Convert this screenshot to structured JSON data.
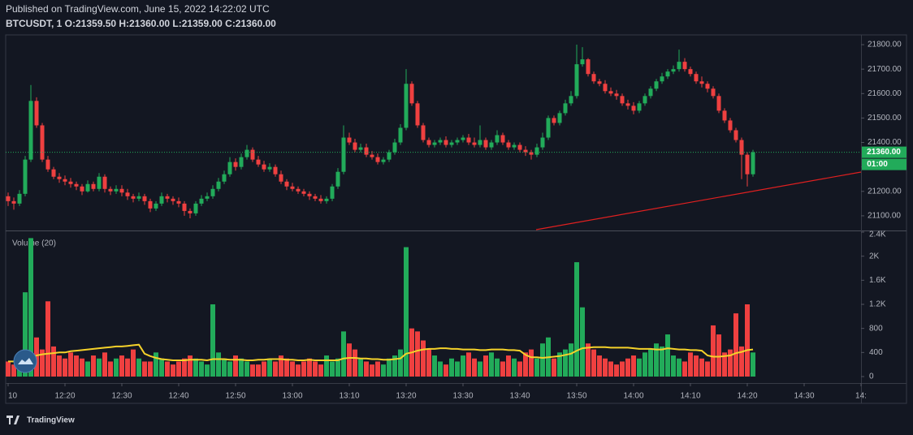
{
  "header": {
    "published": "Published on TradingView.com, June 15, 2022 14:22:02 UTC",
    "symbol_line": "BTCUSDT, 1 O:21359.50 H:21360.00 L:21359.00 C:21360.00"
  },
  "branding": "TradingView",
  "chart_data": {
    "type": "candlestick",
    "x": [
      "12:10",
      "12:11",
      "12:12",
      "12:13",
      "12:14",
      "12:15",
      "12:16",
      "12:17",
      "12:18",
      "12:19",
      "12:20",
      "12:21",
      "12:22",
      "12:23",
      "12:24",
      "12:25",
      "12:26",
      "12:27",
      "12:28",
      "12:29",
      "12:30",
      "12:31",
      "12:32",
      "12:33",
      "12:34",
      "12:35",
      "12:36",
      "12:37",
      "12:38",
      "12:39",
      "12:40",
      "12:41",
      "12:42",
      "12:43",
      "12:44",
      "12:45",
      "12:46",
      "12:47",
      "12:48",
      "12:49",
      "12:50",
      "12:51",
      "12:52",
      "12:53",
      "12:54",
      "12:55",
      "12:56",
      "12:57",
      "12:58",
      "12:59",
      "13:00",
      "13:01",
      "13:02",
      "13:03",
      "13:04",
      "13:05",
      "13:06",
      "13:07",
      "13:08",
      "13:09",
      "13:10",
      "13:11",
      "13:12",
      "13:13",
      "13:14",
      "13:15",
      "13:16",
      "13:17",
      "13:18",
      "13:19",
      "13:20",
      "13:21",
      "13:22",
      "13:23",
      "13:24",
      "13:25",
      "13:26",
      "13:27",
      "13:28",
      "13:29",
      "13:30",
      "13:31",
      "13:32",
      "13:33",
      "13:34",
      "13:35",
      "13:36",
      "13:37",
      "13:38",
      "13:39",
      "13:40",
      "13:41",
      "13:42",
      "13:43",
      "13:44",
      "13:45",
      "13:46",
      "13:47",
      "13:48",
      "13:49",
      "13:50",
      "13:51",
      "13:52",
      "13:53",
      "13:54",
      "13:55",
      "13:56",
      "13:57",
      "13:58",
      "13:59",
      "14:00",
      "14:01",
      "14:02",
      "14:03",
      "14:04",
      "14:05",
      "14:06",
      "14:07",
      "14:08",
      "14:09",
      "14:10",
      "14:11",
      "14:12",
      "14:13",
      "14:14",
      "14:15",
      "14:16",
      "14:17",
      "14:18",
      "14:19",
      "14:20",
      "14:21"
    ],
    "open": [
      21180,
      21160,
      21150,
      21190,
      21330,
      21570,
      21470,
      21330,
      21290,
      21260,
      21250,
      21240,
      21230,
      21220,
      21200,
      21230,
      21210,
      21260,
      21210,
      21200,
      21210,
      21195,
      21180,
      21170,
      21180,
      21160,
      21130,
      21150,
      21180,
      21170,
      21160,
      21150,
      21120,
      21110,
      21150,
      21170,
      21180,
      21210,
      21240,
      21270,
      21320,
      21300,
      21340,
      21370,
      21330,
      21310,
      21290,
      21300,
      21270,
      21240,
      21220,
      21210,
      21200,
      21190,
      21180,
      21170,
      21160,
      21170,
      21220,
      21280,
      21420,
      21400,
      21370,
      21380,
      21350,
      21340,
      21320,
      21330,
      21360,
      21400,
      21460,
      21640,
      21560,
      21470,
      21410,
      21390,
      21400,
      21410,
      21390,
      21400,
      21410,
      21420,
      21400,
      21390,
      21410,
      21380,
      21400,
      21430,
      21400,
      21380,
      21390,
      21370,
      21360,
      21350,
      21380,
      21420,
      21500,
      21480,
      21520,
      21560,
      21590,
      21720,
      21740,
      21680,
      21650,
      21640,
      21610,
      21600,
      21590,
      21560,
      21550,
      21530,
      21560,
      21590,
      21620,
      21650,
      21670,
      21690,
      21700,
      21730,
      21700,
      21680,
      21650,
      21640,
      21620,
      21590,
      21530,
      21490,
      21450,
      21410,
      21350,
      21270
    ],
    "high": [
      21195,
      21175,
      21205,
      21345,
      21635,
      21585,
      21480,
      21345,
      21300,
      21275,
      21265,
      21255,
      21240,
      21230,
      21245,
      21240,
      21275,
      21270,
      21220,
      21225,
      21225,
      21210,
      21190,
      21195,
      21190,
      21170,
      21160,
      21195,
      21190,
      21180,
      21175,
      21160,
      21130,
      21160,
      21185,
      21195,
      21225,
      21255,
      21285,
      21340,
      21335,
      21355,
      21390,
      21380,
      21345,
      21325,
      21315,
      21310,
      21285,
      21250,
      21235,
      21220,
      21210,
      21200,
      21190,
      21185,
      21180,
      21230,
      21295,
      21470,
      21440,
      21415,
      21395,
      21395,
      21365,
      21355,
      21340,
      21370,
      21415,
      21475,
      21700,
      21650,
      21570,
      21480,
      21420,
      21410,
      21420,
      21425,
      21410,
      21420,
      21430,
      21435,
      21420,
      21470,
      21420,
      21410,
      21450,
      21440,
      21410,
      21400,
      21400,
      21385,
      21370,
      21395,
      21440,
      21510,
      21510,
      21530,
      21575,
      21610,
      21800,
      21790,
      21745,
      21690,
      21660,
      21655,
      21625,
      21615,
      21600,
      21575,
      21565,
      21570,
      21600,
      21630,
      21660,
      21685,
      21700,
      21715,
      21780,
      21745,
      21710,
      21690,
      21670,
      21650,
      21630,
      21600,
      21540,
      21500,
      21460,
      21420,
      21360,
      21370
    ],
    "low": [
      21140,
      21125,
      21140,
      21180,
      21320,
      21460,
      21320,
      21280,
      21250,
      21235,
      21225,
      21215,
      21205,
      21185,
      21195,
      21200,
      21200,
      21195,
      21185,
      21190,
      21180,
      21165,
      21155,
      21160,
      21145,
      21115,
      21120,
      21140,
      21155,
      21145,
      21135,
      21100,
      21090,
      21100,
      21140,
      21160,
      21170,
      21200,
      21230,
      21260,
      21285,
      21290,
      21330,
      21320,
      21300,
      21280,
      21280,
      21260,
      21230,
      21205,
      21200,
      21190,
      21180,
      21165,
      21160,
      21150,
      21150,
      21160,
      21210,
      21270,
      21390,
      21360,
      21360,
      21340,
      21330,
      21310,
      21310,
      21320,
      21350,
      21390,
      21450,
      21550,
      21460,
      21400,
      21380,
      21380,
      21390,
      21380,
      21380,
      21390,
      21400,
      21390,
      21380,
      21380,
      21370,
      21370,
      21390,
      21390,
      21370,
      21370,
      21360,
      21345,
      21330,
      21340,
      21370,
      21410,
      21470,
      21470,
      21510,
      21550,
      21580,
      21710,
      21670,
      21640,
      21630,
      21600,
      21590,
      21575,
      21550,
      21535,
      21515,
      21520,
      21550,
      21580,
      21610,
      21640,
      21660,
      21680,
      21690,
      21690,
      21670,
      21640,
      21625,
      21605,
      21580,
      21520,
      21480,
      21440,
      21400,
      21250,
      21220,
      21260
    ],
    "close": [
      21160,
      21150,
      21190,
      21330,
      21570,
      21470,
      21330,
      21290,
      21260,
      21250,
      21240,
      21230,
      21220,
      21200,
      21230,
      21210,
      21260,
      21210,
      21200,
      21210,
      21195,
      21180,
      21170,
      21180,
      21160,
      21130,
      21150,
      21180,
      21170,
      21160,
      21150,
      21120,
      21110,
      21150,
      21170,
      21180,
      21210,
      21240,
      21270,
      21320,
      21300,
      21340,
      21370,
      21330,
      21310,
      21290,
      21300,
      21270,
      21240,
      21220,
      21210,
      21200,
      21190,
      21180,
      21170,
      21160,
      21170,
      21220,
      21280,
      21420,
      21400,
      21370,
      21380,
      21350,
      21340,
      21320,
      21330,
      21360,
      21400,
      21460,
      21640,
      21560,
      21470,
      21410,
      21390,
      21400,
      21410,
      21390,
      21400,
      21410,
      21420,
      21400,
      21390,
      21410,
      21380,
      21400,
      21430,
      21400,
      21380,
      21390,
      21370,
      21360,
      21350,
      21380,
      21420,
      21500,
      21480,
      21520,
      21560,
      21590,
      21720,
      21740,
      21680,
      21650,
      21640,
      21610,
      21600,
      21590,
      21560,
      21550,
      21530,
      21560,
      21590,
      21620,
      21650,
      21670,
      21690,
      21700,
      21730,
      21700,
      21680,
      21650,
      21640,
      21620,
      21590,
      21530,
      21490,
      21450,
      21410,
      21350,
      21270,
      21360
    ],
    "up_color": "#22ab5a",
    "down_color": "#ef4040",
    "xlim": [
      "12:09",
      "14:40"
    ],
    "xticks": [
      {
        "value": "12:10",
        "label": "10"
      },
      "12:20",
      "12:30",
      "12:40",
      "12:50",
      "13:00",
      "13:10",
      "13:20",
      "13:30",
      "13:40",
      "13:50",
      "14:00",
      "14:10",
      "14:20",
      "14:30",
      {
        "value": "14:40",
        "label": "14:"
      }
    ],
    "ylim": [
      21040,
      21840
    ],
    "yticks": [
      {
        "value": 21100,
        "label": "21100.00"
      },
      {
        "value": 21200,
        "label": "21200.00"
      },
      {
        "value": 21300,
        "label": "21300.00"
      },
      {
        "value": 21400,
        "label": "21400.00"
      },
      {
        "value": 21500,
        "label": "21500.00"
      },
      {
        "value": 21600,
        "label": "21600.00"
      },
      {
        "value": 21700,
        "label": "21700.00"
      },
      {
        "value": 21800,
        "label": "21800.00"
      }
    ],
    "last_price_label": "21360.00",
    "countdown": "01:00",
    "volume": {
      "title": "Volume (20)",
      "values": [
        250,
        200,
        300,
        1400,
        2300,
        650,
        450,
        1250,
        500,
        350,
        300,
        400,
        350,
        300,
        250,
        350,
        300,
        400,
        250,
        300,
        350,
        300,
        450,
        300,
        250,
        250,
        400,
        300,
        250,
        200,
        250,
        300,
        350,
        300,
        250,
        200,
        1200,
        400,
        300,
        250,
        350,
        300,
        250,
        200,
        200,
        250,
        300,
        250,
        350,
        300,
        250,
        200,
        250,
        300,
        250,
        200,
        350,
        250,
        300,
        750,
        550,
        450,
        300,
        250,
        200,
        250,
        200,
        300,
        350,
        450,
        2150,
        800,
        750,
        600,
        450,
        350,
        250,
        200,
        300,
        250,
        350,
        400,
        300,
        250,
        350,
        400,
        300,
        250,
        350,
        300,
        250,
        400,
        450,
        300,
        550,
        650,
        300,
        400,
        450,
        550,
        1900,
        1150,
        550,
        450,
        350,
        300,
        250,
        200,
        250,
        300,
        350,
        300,
        400,
        450,
        550,
        500,
        700,
        350,
        300,
        250,
        400,
        350,
        300,
        250,
        850,
        700,
        400,
        450,
        1050,
        500,
        1200,
        400
      ],
      "ma": {
        "color": "#f5d22a",
        "values": [
          250,
          250,
          260,
          300,
          320,
          350,
          370,
          380,
          390,
          400,
          400,
          420,
          430,
          440,
          450,
          460,
          470,
          480,
          490,
          500,
          500,
          510,
          520,
          530,
          380,
          340,
          310,
          290,
          280,
          270,
          270,
          270,
          280,
          280,
          280,
          270,
          290,
          290,
          290,
          280,
          280,
          280,
          270,
          270,
          280,
          280,
          290,
          290,
          290,
          280,
          280,
          270,
          270,
          280,
          270,
          270,
          270,
          270,
          270,
          300,
          310,
          310,
          300,
          300,
          290,
          290,
          280,
          280,
          290,
          300,
          380,
          400,
          430,
          450,
          460,
          460,
          470,
          470,
          460,
          460,
          450,
          450,
          450,
          440,
          440,
          450,
          450,
          450,
          440,
          440,
          430,
          360,
          320,
          320,
          310,
          320,
          330,
          340,
          360,
          380,
          430,
          470,
          480,
          490,
          490,
          490,
          480,
          480,
          480,
          480,
          470,
          460,
          460,
          460,
          450,
          450,
          470,
          460,
          450,
          450,
          440,
          440,
          430,
          350,
          330,
          330,
          340,
          350,
          390,
          410,
          440,
          450
        ]
      },
      "ylim": [
        -108,
        2400
      ],
      "yticks": [
        0,
        400,
        800,
        {
          "value": 1200,
          "label": "1.2K"
        },
        {
          "value": 1600,
          "label": "1.6K"
        },
        {
          "value": 2000,
          "label": "2K"
        },
        {
          "value": 2400,
          "label": "2.4K"
        }
      ]
    }
  }
}
